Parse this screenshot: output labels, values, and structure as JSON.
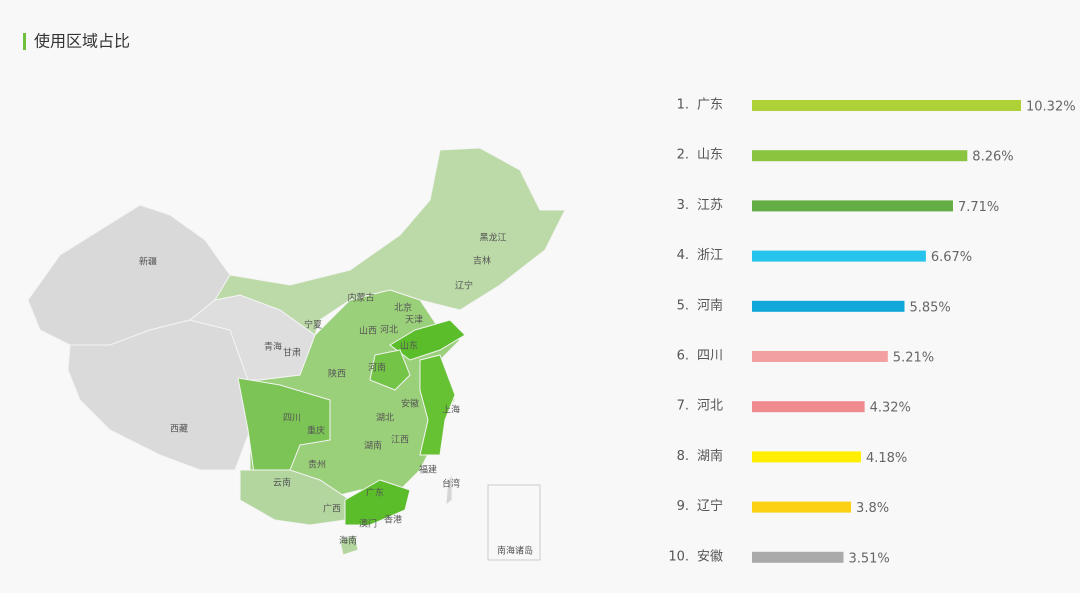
{
  "header": {
    "title": "使用区域占比"
  },
  "map": {
    "labels": [
      "新疆",
      "西藏",
      "青海",
      "甘肃",
      "宁夏",
      "内蒙古",
      "黑龙江",
      "吉林",
      "辽宁",
      "北京",
      "天津",
      "河北",
      "山西",
      "山东",
      "陕西",
      "河南",
      "安徽",
      "上海",
      "四川",
      "重庆",
      "湖北",
      "湖南",
      "江西",
      "贵州",
      "云南",
      "广西",
      "广东",
      "福建",
      "台湾",
      "香港",
      "澳门",
      "海南",
      "南海诸岛"
    ]
  },
  "chart_data": {
    "type": "bar",
    "orientation": "horizontal",
    "ranks": [
      "1.",
      "2.",
      "3.",
      "4.",
      "5.",
      "6.",
      "7.",
      "8.",
      "9.",
      "10."
    ],
    "categories": [
      "广东",
      "山东",
      "江苏",
      "浙江",
      "河南",
      "四川",
      "河北",
      "湖南",
      "辽宁",
      "安徽"
    ],
    "values": [
      10.32,
      8.26,
      7.71,
      6.67,
      5.85,
      5.21,
      4.32,
      4.18,
      3.8,
      3.51
    ],
    "value_labels": [
      "10.32%",
      "8.26%",
      "7.71%",
      "6.67%",
      "5.85%",
      "5.21%",
      "4.32%",
      "4.18%",
      "3.8%",
      "3.51%"
    ],
    "colors": [
      "#add136",
      "#8bc43f",
      "#64ad45",
      "#26c4ec",
      "#10a7da",
      "#f2a0a0",
      "#ef8a8f",
      "#ffee00",
      "#fcd113",
      "#aaaaaa"
    ]
  }
}
